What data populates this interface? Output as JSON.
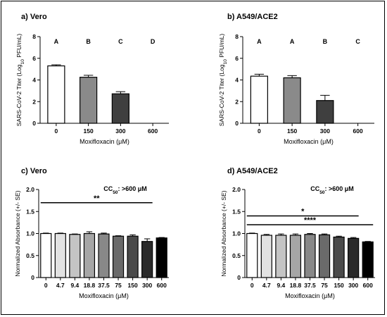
{
  "chart_data": [
    {
      "panel": "a",
      "type": "bar",
      "title_prefix": "a)",
      "title": "Vero",
      "xlabel_main": "Moxifloxacin (",
      "xlabel_unit": "μM",
      "xlabel_end": ")",
      "ylabel_main": "SARS-CoV-2 Titer (Log",
      "ylabel_sub": "10",
      "ylabel_end": " PFU/mL)",
      "categories": [
        "0",
        "150",
        "300",
        "600"
      ],
      "values": [
        5.3,
        4.25,
        2.72,
        0
      ],
      "errors": [
        0.1,
        0.18,
        0.2,
        0
      ],
      "fills": [
        "#ffffff",
        "#8a8a8a",
        "#3f3f3f",
        "#000000"
      ],
      "group_letters": [
        "A",
        "B",
        "C",
        "D"
      ],
      "ylim": [
        0,
        8
      ],
      "yticks": [
        "0",
        "2",
        "4",
        "6",
        "8"
      ]
    },
    {
      "panel": "b",
      "type": "bar",
      "title_prefix": "b)",
      "title": "A549/ACE2",
      "xlabel_main": "Moxifloxacin (",
      "xlabel_unit": "μM",
      "xlabel_end": ")",
      "ylabel_main": "SARS-CoV-2 Titer (Log",
      "ylabel_sub": "10",
      "ylabel_end": " PFU/mL)",
      "categories": [
        "0",
        "150",
        "300",
        "600"
      ],
      "values": [
        4.35,
        4.2,
        2.1,
        0
      ],
      "errors": [
        0.18,
        0.2,
        0.48,
        0
      ],
      "fills": [
        "#ffffff",
        "#8a8a8a",
        "#3f3f3f",
        "#000000"
      ],
      "group_letters": [
        "A",
        "A",
        "B",
        "C"
      ],
      "ylim": [
        0,
        8
      ],
      "yticks": [
        "0",
        "2",
        "4",
        "6",
        "8"
      ]
    },
    {
      "panel": "c",
      "type": "bar",
      "title_prefix": "c)",
      "title": "Vero",
      "xlabel_main": "Moxifloxacin (",
      "xlabel_unit": "μM",
      "xlabel_end": ")",
      "ylabel_main": "Normalized Absorbance (+/- SE)",
      "categories": [
        "0",
        "4.7",
        "9.4",
        "18.8",
        "37.5",
        "75",
        "150",
        "300",
        "600"
      ],
      "values": [
        1.0,
        1.0,
        0.98,
        1.0,
        0.99,
        0.94,
        0.94,
        0.82,
        0.9
      ],
      "errors": [
        0.01,
        0.01,
        0.01,
        0.04,
        0.02,
        0.01,
        0.03,
        0.06,
        0.01
      ],
      "fills": [
        "#ffffff",
        "#e2e2e2",
        "#c4c4c4",
        "#a6a6a6",
        "#888888",
        "#6a6a6a",
        "#4a4a4a",
        "#2a2a2a",
        "#000000"
      ],
      "ylim": [
        0,
        2.0
      ],
      "yticks": [
        "0",
        "0.5",
        "1.0",
        "1.5",
        "2.0"
      ],
      "cc50_main": "CC",
      "cc50_sub": "50",
      "cc50_end": ": >600 ",
      "cc50_unit": "μM",
      "significance": [
        {
          "label": "**",
          "from": 0,
          "to": 7,
          "y": 1.7
        }
      ]
    },
    {
      "panel": "d",
      "type": "bar",
      "title_prefix": "d)",
      "title": "A549/ACE2",
      "xlabel_main": "Moxifloxacin (",
      "xlabel_unit": "μM",
      "xlabel_end": ")",
      "ylabel_main": "Normalized Absorbance (+/- SE)",
      "categories": [
        "0",
        "4.7",
        "9.4",
        "18.8",
        "37.5",
        "75",
        "150",
        "300",
        "600"
      ],
      "values": [
        1.0,
        0.96,
        0.96,
        0.96,
        0.98,
        0.97,
        0.92,
        0.89,
        0.81
      ],
      "errors": [
        0.01,
        0.02,
        0.03,
        0.03,
        0.02,
        0.02,
        0.02,
        0.02,
        0.01
      ],
      "fills": [
        "#ffffff",
        "#e2e2e2",
        "#c4c4c4",
        "#a6a6a6",
        "#888888",
        "#6a6a6a",
        "#4a4a4a",
        "#2a2a2a",
        "#000000"
      ],
      "ylim": [
        0,
        2.0
      ],
      "yticks": [
        "0",
        "0.5",
        "1.0",
        "1.5",
        "2.0"
      ],
      "cc50_main": "CC",
      "cc50_sub": "50",
      "cc50_end": ": >600 ",
      "cc50_unit": "μM",
      "significance": [
        {
          "label": "*",
          "from": 0,
          "to": 7,
          "y": 1.4
        },
        {
          "label": "****",
          "from": 0,
          "to": 8,
          "y": 1.2
        }
      ]
    }
  ]
}
